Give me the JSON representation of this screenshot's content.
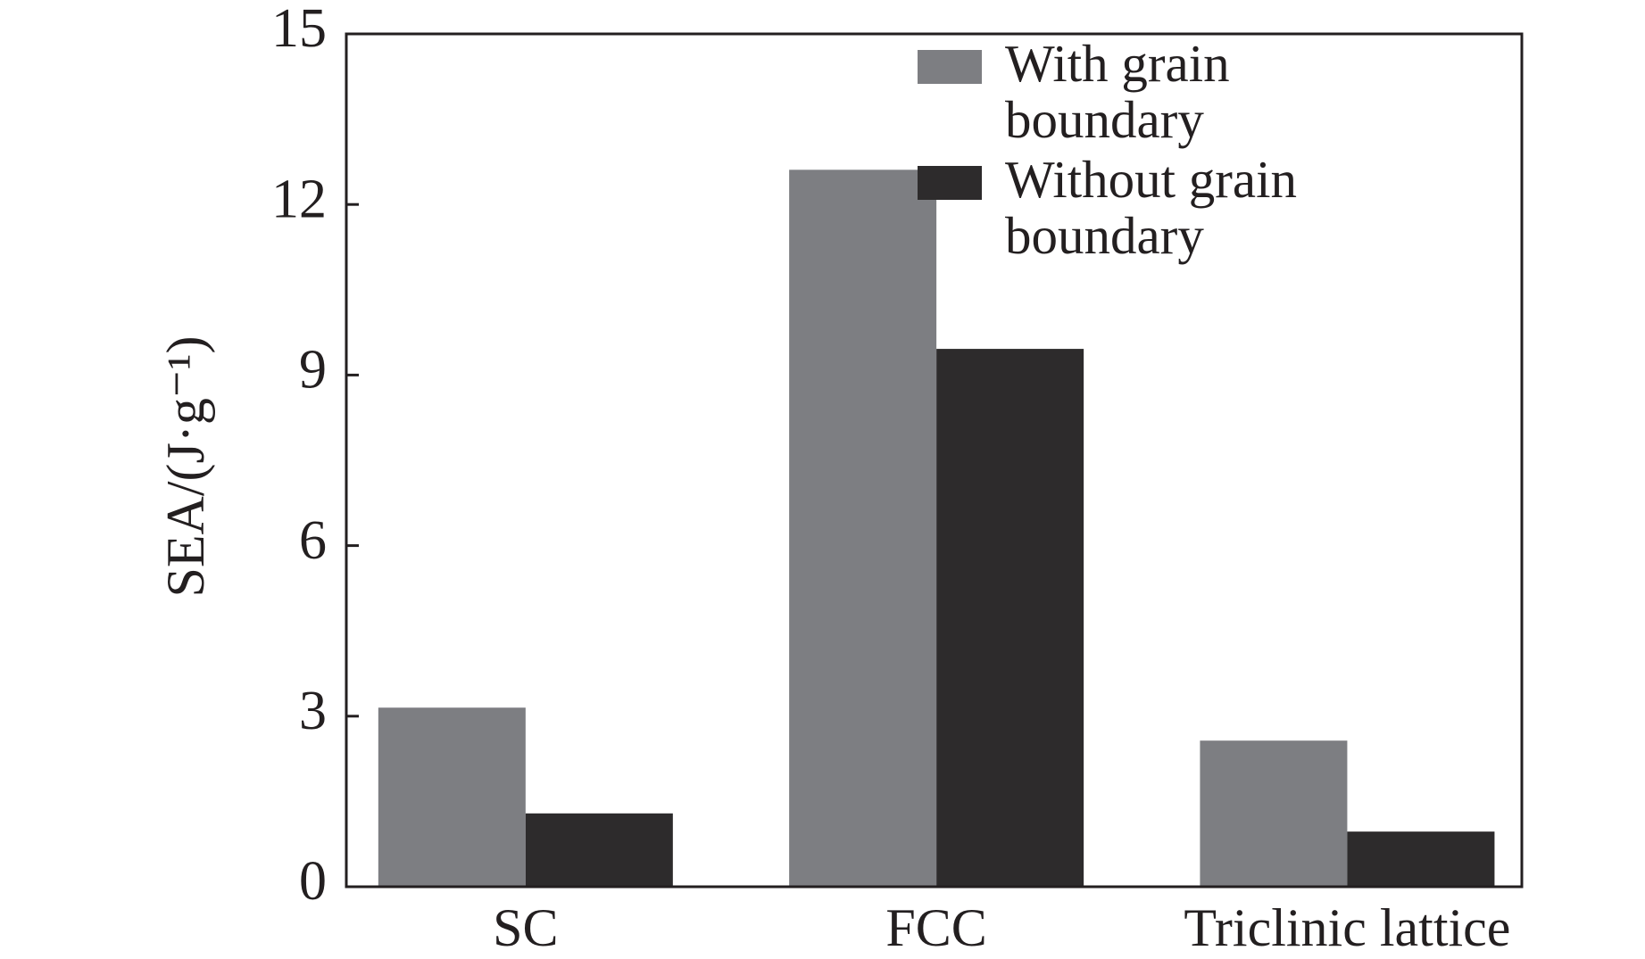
{
  "chart_data": {
    "type": "bar",
    "y_label": "SEA/(J·g⁻¹)",
    "categories": [
      "SC",
      "FCC",
      "Triclinic lattice"
    ],
    "series": [
      {
        "name": "With grain boundary",
        "color": "#7d7e82",
        "values": [
          3.15,
          12.61,
          2.57
        ]
      },
      {
        "name": "Without grain boundary",
        "color": "#2d2b2c",
        "values": [
          1.29,
          9.46,
          0.97
        ]
      }
    ],
    "ylim": [
      0,
      15
    ],
    "yticks": [
      0,
      3,
      6,
      9,
      12,
      15
    ],
    "grid": false,
    "legend": "upper right"
  }
}
